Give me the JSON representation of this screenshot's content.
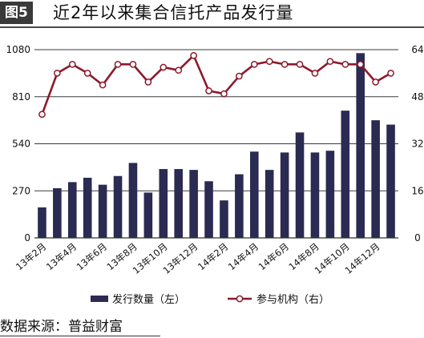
{
  "figure": {
    "tag": "图5",
    "title": "近2年以来集合信托产品发行量",
    "source": "数据来源：普益财富"
  },
  "chart_data": {
    "type": "bar+line",
    "categories": [
      "13年2月",
      "13年3月",
      "13年4月",
      "13年5月",
      "13年6月",
      "13年7月",
      "13年8月",
      "13年9月",
      "13年10月",
      "13年11月",
      "13年12月",
      "14年1月",
      "14年2月",
      "14年3月",
      "14年4月",
      "14年5月",
      "14年6月",
      "14年7月",
      "14年8月",
      "14年9月",
      "14年10月",
      "14年11月",
      "14年12月",
      "15年1月"
    ],
    "x_tick_labels": [
      "13年2月",
      "13年4月",
      "13年6月",
      "13年8月",
      "13年10月",
      "13年12月",
      "14年2月",
      "14年4月",
      "14年6月",
      "14年8月",
      "14年10月",
      "14年12月"
    ],
    "x_tick_every": 2,
    "left_axis": {
      "ticks": [
        "0",
        "270",
        "540",
        "810",
        "1080"
      ],
      "ylim": [
        0,
        1080
      ]
    },
    "right_axis": {
      "ticks": [
        "0",
        "16",
        "32",
        "48",
        "64"
      ],
      "ylim": [
        0,
        64
      ]
    },
    "grid": "horizontal",
    "legend_position": "bottom",
    "series": [
      {
        "name": "发行数量（左）",
        "type": "bar",
        "axis": "left",
        "color": "#2b2a52",
        "values": [
          175,
          285,
          320,
          345,
          305,
          355,
          430,
          260,
          395,
          395,
          390,
          325,
          215,
          365,
          495,
          390,
          490,
          605,
          490,
          500,
          730,
          1060,
          675,
          650
        ]
      },
      {
        "name": "参与机构（右）",
        "type": "line",
        "axis": "right",
        "color": "#8b1a2c",
        "values": [
          42,
          56,
          59,
          56,
          52,
          59,
          59,
          53,
          58,
          57,
          62,
          50,
          49,
          55,
          59,
          60,
          59,
          59,
          56,
          60,
          59,
          59,
          53,
          56
        ]
      }
    ]
  }
}
